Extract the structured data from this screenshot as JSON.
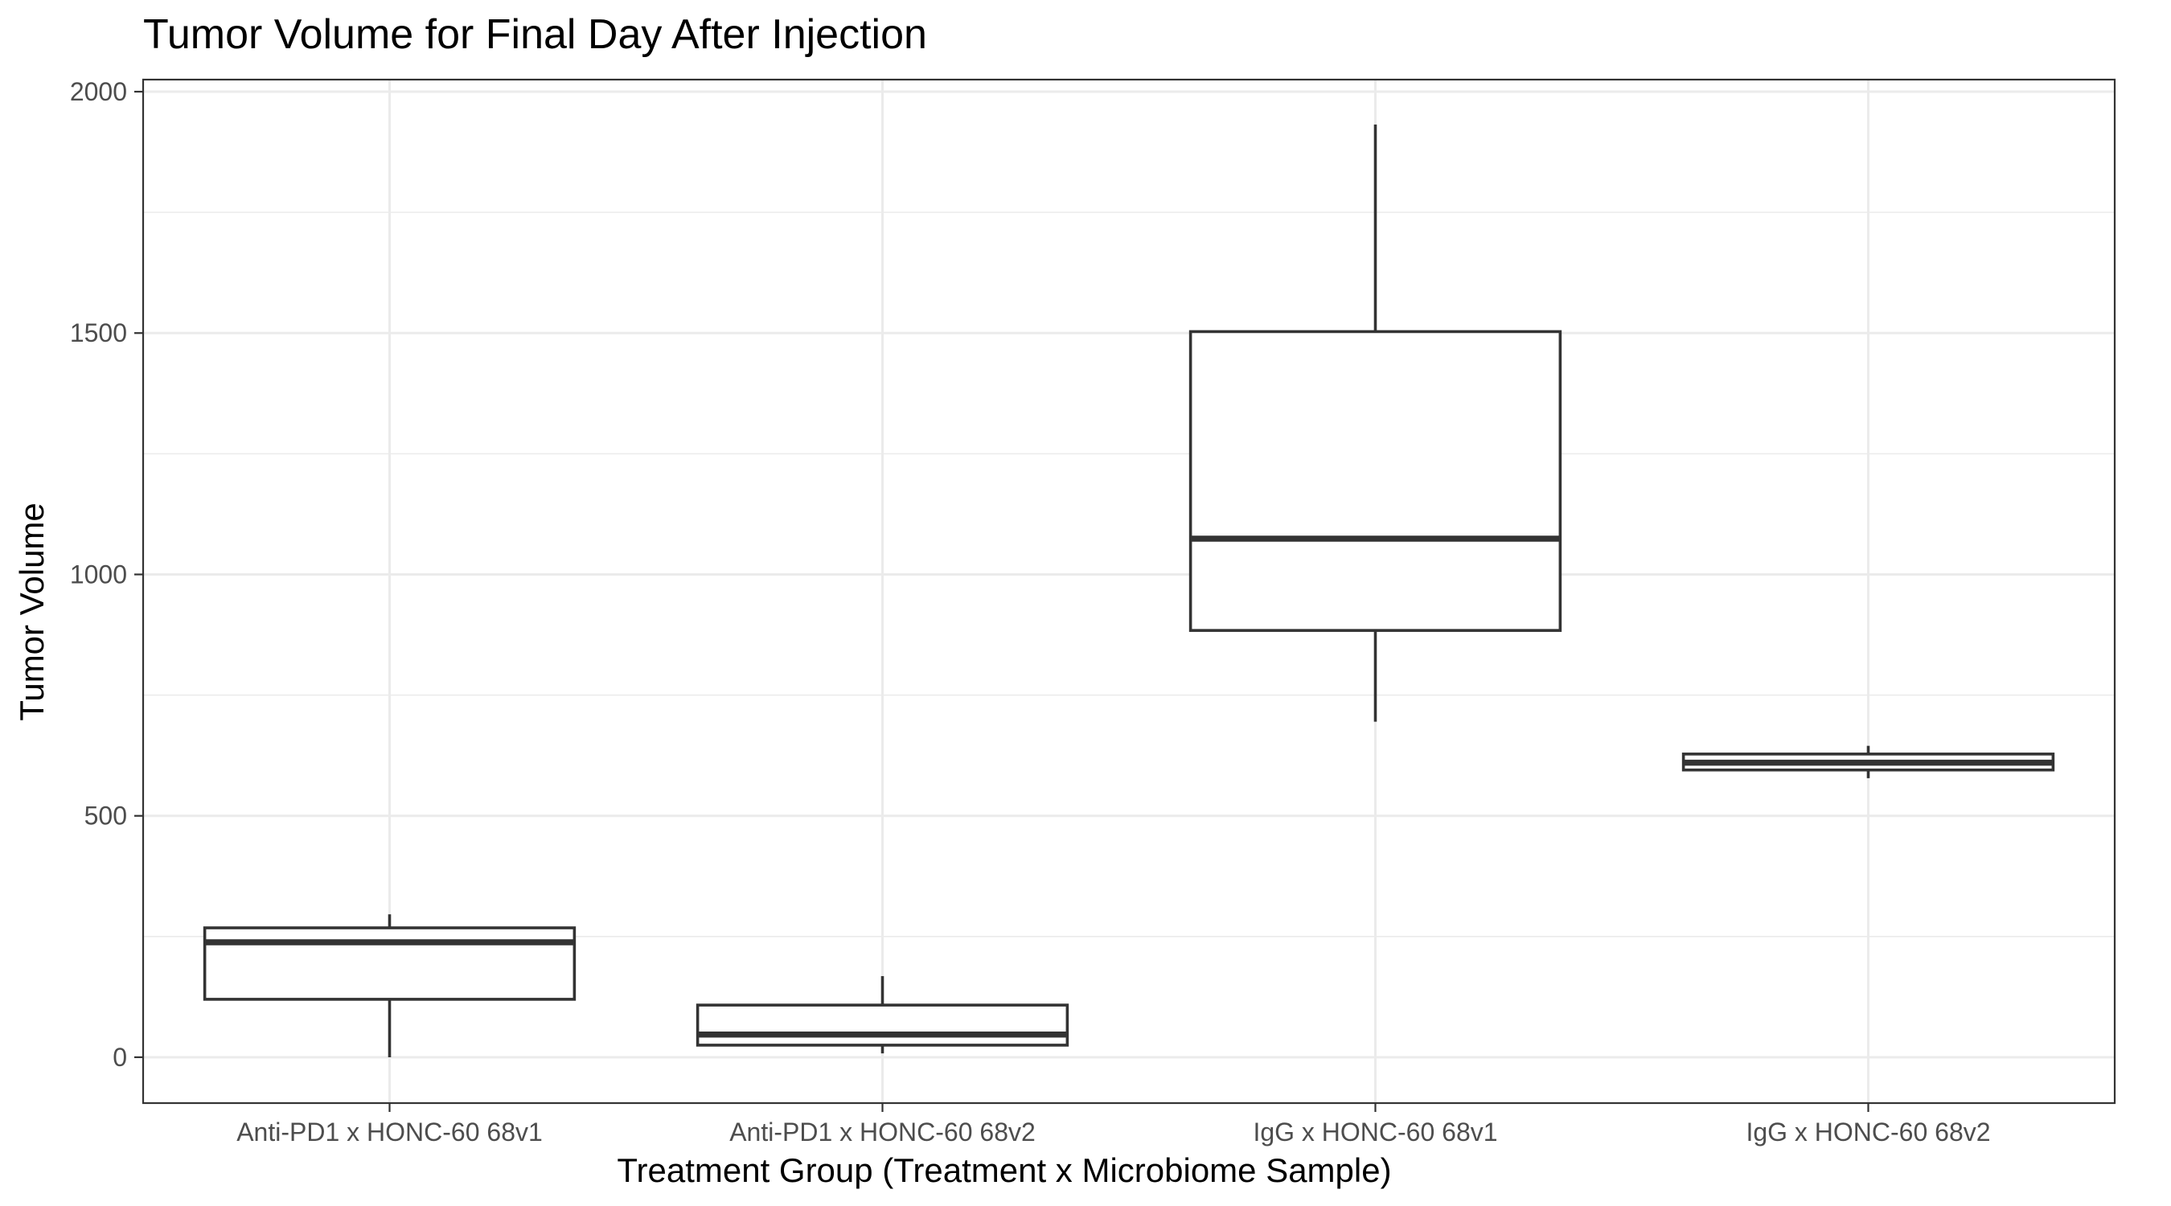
{
  "chart_data": {
    "type": "boxplot",
    "title": "Tumor Volume for Final Day After Injection",
    "xlabel": "Treatment Group (Treatment x Microbiome Sample)",
    "ylabel": "Tumor Volume",
    "ylim": [
      -95,
      2025
    ],
    "yticks": [
      0,
      500,
      1000,
      1500,
      2000
    ],
    "grid": true,
    "legend": "none",
    "categories": [
      "Anti-PD1 x HONC-60 68v1",
      "Anti-PD1 x HONC-60 68v2",
      "IgG x HONC-60 68v1",
      "IgG x HONC-60 68v2"
    ],
    "boxes": [
      {
        "category": "Anti-PD1 x HONC-60 68v1",
        "min": 0,
        "q1": 120,
        "median": 238,
        "q3": 268,
        "max": 296
      },
      {
        "category": "Anti-PD1 x HONC-60 68v2",
        "min": 8,
        "q1": 25,
        "median": 47,
        "q3": 108,
        "max": 168
      },
      {
        "category": "IgG x HONC-60 68v1",
        "min": 695,
        "q1": 884,
        "median": 1074,
        "q3": 1503,
        "max": 1932
      },
      {
        "category": "IgG x HONC-60 68v2",
        "min": 578,
        "q1": 595,
        "median": 610,
        "q3": 628,
        "max": 645
      }
    ]
  }
}
